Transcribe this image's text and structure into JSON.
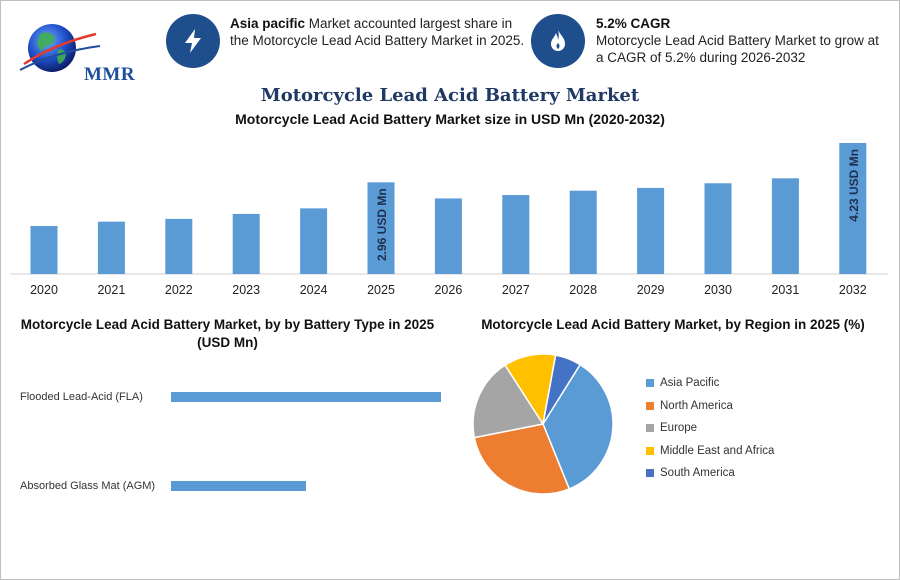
{
  "brand": {
    "logo_text": "MMR"
  },
  "stats": [
    {
      "bold": "Asia pacific",
      "text": " Market accounted largest share in the Motorcycle Lead Acid Battery Market in 2025.",
      "icon": "lightning-icon"
    },
    {
      "bold": "5.2% CAGR",
      "text": "Motorcycle Lead Acid Battery Market to grow at a CAGR of 5.2% during 2026-2032",
      "icon": "flame-icon"
    }
  ],
  "header": {
    "title": "Motorcycle Lead Acid Battery Market",
    "subtitle": "Motorcycle Lead Acid Battery Market size in USD Mn (2020-2032)"
  },
  "colors": {
    "bar": "#5b9bd5",
    "accent": "#1f4e8c",
    "pie": [
      "#5b9bd5",
      "#ed7d31",
      "#a5a5a5",
      "#ffc000",
      "#4472c4"
    ]
  },
  "chart_data": [
    {
      "type": "bar",
      "title": "Motorcycle Lead Acid Battery Market size in USD Mn (2020-2032)",
      "categories": [
        "2020",
        "2021",
        "2022",
        "2023",
        "2024",
        "2025",
        "2026",
        "2027",
        "2028",
        "2029",
        "2030",
        "2031",
        "2032"
      ],
      "values": [
        1.55,
        1.69,
        1.78,
        1.94,
        2.12,
        2.96,
        2.44,
        2.55,
        2.69,
        2.78,
        2.93,
        3.09,
        4.23
      ],
      "data_labels": {
        "2025": "2.96 USD Mn",
        "2032": "4.23 USD Mn"
      },
      "ylim": [
        0,
        4.23
      ],
      "xlabel": "",
      "ylabel": ""
    },
    {
      "type": "bar",
      "orientation": "horizontal",
      "title": "Motorcycle Lead Acid Battery Market, by by Battery Type in 2025 (USD Mn)",
      "categories": [
        "Flooded Lead-Acid (FLA)",
        "Absorbed Glass Mat (AGM)"
      ],
      "values": [
        2.0,
        1.0
      ],
      "xlim": [
        0,
        2.0
      ]
    },
    {
      "type": "pie",
      "title": "Motorcycle Lead Acid Battery Market, by Region in 2025 (%)",
      "categories": [
        "Asia Pacific",
        "North America",
        "Europe",
        "Middle East and Africa",
        "South America"
      ],
      "values": [
        35,
        28,
        19,
        12,
        6
      ],
      "legend": "right"
    }
  ]
}
